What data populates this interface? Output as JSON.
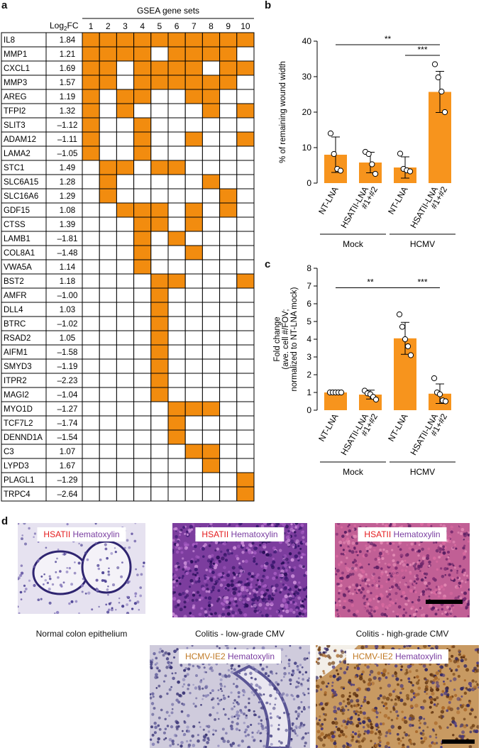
{
  "panels": {
    "a": "a",
    "b": "b",
    "c": "c",
    "d": "d"
  },
  "heatmap": {
    "header_log": "Log",
    "header_sub": "2",
    "header_fc": "FC",
    "header_sets": "GSEA gene sets",
    "set_numbers": [
      "1",
      "2",
      "3",
      "4",
      "5",
      "6",
      "7",
      "8",
      "9",
      "10"
    ],
    "fill_color": "#F28C0F",
    "rows": [
      {
        "gene": "IL8",
        "fc": "1.84",
        "cells": [
          1,
          1,
          1,
          1,
          1,
          1,
          1,
          1,
          1,
          1
        ]
      },
      {
        "gene": "MMP1",
        "fc": "1.21",
        "cells": [
          1,
          1,
          1,
          1,
          0,
          1,
          1,
          1,
          1,
          0
        ]
      },
      {
        "gene": "CXCL1",
        "fc": "1.69",
        "cells": [
          1,
          1,
          0,
          1,
          1,
          1,
          1,
          0,
          1,
          1
        ]
      },
      {
        "gene": "MMP3",
        "fc": "1.57",
        "cells": [
          1,
          1,
          0,
          1,
          1,
          1,
          1,
          1,
          1,
          0
        ]
      },
      {
        "gene": "AREG",
        "fc": "1.19",
        "cells": [
          1,
          0,
          1,
          1,
          0,
          0,
          1,
          1,
          0,
          0
        ]
      },
      {
        "gene": "TFPI2",
        "fc": "1.32",
        "cells": [
          1,
          0,
          1,
          0,
          0,
          0,
          0,
          1,
          0,
          1
        ]
      },
      {
        "gene": "SLIT3",
        "fc": "–1.12",
        "cells": [
          1,
          0,
          0,
          1,
          0,
          0,
          0,
          0,
          0,
          0
        ]
      },
      {
        "gene": "ADAM12",
        "fc": "–1.11",
        "cells": [
          1,
          0,
          0,
          1,
          0,
          0,
          1,
          0,
          0,
          1
        ]
      },
      {
        "gene": "LAMA2",
        "fc": "–1.05",
        "cells": [
          1,
          0,
          0,
          1,
          0,
          0,
          0,
          0,
          0,
          0
        ]
      },
      {
        "gene": "STC1",
        "fc": "1.49",
        "cells": [
          0,
          1,
          1,
          0,
          1,
          1,
          0,
          0,
          0,
          0
        ]
      },
      {
        "gene": "SLC6A15",
        "fc": "1.28",
        "cells": [
          0,
          1,
          0,
          0,
          0,
          0,
          0,
          1,
          0,
          0
        ]
      },
      {
        "gene": "SLC16A6",
        "fc": "1.29",
        "cells": [
          0,
          1,
          0,
          0,
          0,
          0,
          0,
          0,
          1,
          0
        ]
      },
      {
        "gene": "GDF15",
        "fc": "1.08",
        "cells": [
          0,
          0,
          1,
          1,
          1,
          0,
          1,
          0,
          1,
          0
        ]
      },
      {
        "gene": "CTSS",
        "fc": "1.39",
        "cells": [
          0,
          0,
          0,
          1,
          1,
          0,
          1,
          0,
          0,
          0
        ]
      },
      {
        "gene": "LAMB1",
        "fc": "–1.81",
        "cells": [
          0,
          0,
          0,
          1,
          0,
          1,
          0,
          0,
          0,
          0
        ]
      },
      {
        "gene": "COL8A1",
        "fc": "–1.48",
        "cells": [
          0,
          0,
          0,
          1,
          0,
          0,
          1,
          0,
          0,
          0
        ]
      },
      {
        "gene": "VWA5A",
        "fc": "1.14",
        "cells": [
          0,
          0,
          0,
          1,
          0,
          0,
          0,
          0,
          0,
          0
        ]
      },
      {
        "gene": "BST2",
        "fc": "1.18",
        "cells": [
          0,
          0,
          0,
          0,
          1,
          1,
          0,
          0,
          0,
          1
        ]
      },
      {
        "gene": "AMFR",
        "fc": "–1.00",
        "cells": [
          0,
          0,
          0,
          0,
          1,
          0,
          0,
          0,
          0,
          0
        ]
      },
      {
        "gene": "DLL4",
        "fc": "1.03",
        "cells": [
          0,
          0,
          0,
          0,
          1,
          0,
          0,
          0,
          0,
          0
        ]
      },
      {
        "gene": "BTRC",
        "fc": "–1.02",
        "cells": [
          0,
          0,
          0,
          0,
          1,
          0,
          0,
          0,
          0,
          0
        ]
      },
      {
        "gene": "RSAD2",
        "fc": "1.05",
        "cells": [
          0,
          0,
          0,
          0,
          1,
          0,
          0,
          0,
          0,
          0
        ]
      },
      {
        "gene": "AIFM1",
        "fc": "–1.58",
        "cells": [
          0,
          0,
          0,
          0,
          1,
          0,
          0,
          0,
          0,
          0
        ]
      },
      {
        "gene": "SMYD3",
        "fc": "–1.19",
        "cells": [
          0,
          0,
          0,
          0,
          1,
          0,
          0,
          0,
          0,
          0
        ]
      },
      {
        "gene": "ITPR2",
        "fc": "–2.23",
        "cells": [
          0,
          0,
          0,
          0,
          1,
          0,
          0,
          0,
          0,
          0
        ]
      },
      {
        "gene": "MAGI2",
        "fc": "–1.04",
        "cells": [
          0,
          0,
          0,
          0,
          1,
          0,
          0,
          0,
          0,
          0
        ]
      },
      {
        "gene": "MYO1D",
        "fc": "–1.27",
        "cells": [
          0,
          0,
          0,
          0,
          0,
          1,
          1,
          1,
          0,
          0
        ]
      },
      {
        "gene": "TCF7L2",
        "fc": "–1.74",
        "cells": [
          0,
          0,
          0,
          0,
          0,
          1,
          0,
          0,
          0,
          0
        ]
      },
      {
        "gene": "DENND1A",
        "fc": "–1.54",
        "cells": [
          0,
          0,
          0,
          0,
          0,
          1,
          0,
          0,
          0,
          0
        ]
      },
      {
        "gene": "C3",
        "fc": "1.07",
        "cells": [
          0,
          0,
          0,
          0,
          0,
          0,
          1,
          1,
          0,
          0
        ]
      },
      {
        "gene": "LYPD3",
        "fc": "1.67",
        "cells": [
          0,
          0,
          0,
          0,
          0,
          0,
          0,
          1,
          0,
          0
        ]
      },
      {
        "gene": "PLAGL1",
        "fc": "–1.29",
        "cells": [
          0,
          0,
          0,
          0,
          0,
          0,
          0,
          0,
          0,
          1
        ]
      },
      {
        "gene": "TRPC4",
        "fc": "–2.64",
        "cells": [
          0,
          0,
          0,
          0,
          0,
          0,
          0,
          0,
          0,
          1
        ]
      }
    ]
  },
  "chart_data": [
    {
      "type": "bar",
      "panel": "b",
      "ylabel": "% of remaining wound width",
      "ylim": [
        0,
        40
      ],
      "yticks": [
        0,
        10,
        20,
        30,
        40
      ],
      "categories": [
        "NT-LNA",
        "HSATII-LNA #1+#2",
        "NT-LNA",
        "HSATII-LNA #1+#2"
      ],
      "category_lines": [
        [
          "NT-LNA"
        ],
        [
          "HSATII-LNA",
          "#1+#2"
        ],
        [
          "NT-LNA"
        ],
        [
          "HSATII-LNA",
          "#1+#2"
        ]
      ],
      "groups": [
        {
          "label": "Mock",
          "members": [
            0,
            1
          ]
        },
        {
          "label": "HCMV",
          "members": [
            2,
            3
          ]
        }
      ],
      "values": [
        8.0,
        5.8,
        4.4,
        25.7
      ],
      "errors": [
        5.0,
        2.9,
        3.0,
        5.8
      ],
      "points": [
        [
          14.0,
          8.2,
          4.0,
          3.5
        ],
        [
          8.8,
          8.2,
          5.3,
          2.6
        ],
        [
          8.3,
          4.0,
          3.6,
          3.3
        ],
        [
          33.5,
          29.8,
          25.8,
          20.0
        ]
      ],
      "bar_color": "#F7941D",
      "significance": [
        {
          "from": 0,
          "to": 3,
          "label": "**",
          "y": 39
        },
        {
          "from": 2,
          "to": 3,
          "label": "***",
          "y": 36
        }
      ]
    },
    {
      "type": "bar",
      "panel": "c",
      "ylabel_lines": [
        "Fold change",
        "(ave. cell #/FOV;",
        "normalized to NT-LNA mock)"
      ],
      "ylim": [
        0,
        8
      ],
      "yticks": [
        0,
        1,
        2,
        3,
        4,
        5,
        6,
        7,
        8
      ],
      "categories": [
        "NT-LNA",
        "HSATII-LNA #1+#2",
        "NT-LNA",
        "HSATII-LNA #1+#2"
      ],
      "category_lines": [
        [
          "NT-LNA"
        ],
        [
          "HSATII-LNA",
          "#1+#2"
        ],
        [
          "NT-LNA"
        ],
        [
          "HSATII-LNA",
          "#1+#2"
        ]
      ],
      "groups": [
        {
          "label": "Mock",
          "members": [
            0,
            1
          ]
        },
        {
          "label": "HCMV",
          "members": [
            2,
            3
          ]
        }
      ],
      "values": [
        1.0,
        0.88,
        4.05,
        0.93
      ],
      "errors": [
        0.0,
        0.25,
        0.9,
        0.55
      ],
      "points": [
        [
          1.0,
          1.0,
          1.0,
          1.0,
          1.0
        ],
        [
          1.1,
          0.95,
          0.9,
          0.75,
          0.6
        ],
        [
          5.4,
          4.7,
          4.0,
          3.6,
          3.1
        ],
        [
          1.8,
          1.0,
          0.9,
          0.55,
          0.5
        ]
      ],
      "bar_color": "#F7941D",
      "significance": [
        {
          "from": 0,
          "to": 2,
          "label": "**",
          "y": 6.9
        },
        {
          "from": 2,
          "to": 3,
          "label": "***",
          "y": 6.9
        }
      ]
    }
  ],
  "panel_d": {
    "tiles": [
      {
        "stain": "HSATII",
        "counter": "Hematoxylin",
        "caption": "Normal colon epithelium",
        "style": "normal"
      },
      {
        "stain": "HSATII",
        "counter": "Hematoxylin",
        "caption": "Colitis - low-grade CMV",
        "style": "low"
      },
      {
        "stain": "HSATII",
        "counter": "Hematoxylin",
        "caption": "Colitis - high-grade CMV",
        "style": "high"
      },
      {
        "stain": "HCMV-IE2",
        "counter": "Hematoxylin",
        "caption": "",
        "style": "ie2-low"
      },
      {
        "stain": "HCMV-IE2",
        "counter": "Hematoxylin",
        "caption": "",
        "style": "ie2-high"
      }
    ]
  }
}
